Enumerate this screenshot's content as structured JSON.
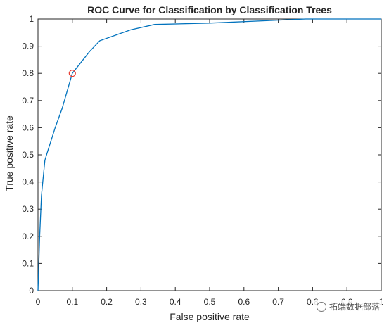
{
  "chart_data": {
    "type": "line",
    "title": "ROC Curve for Classification by Classification Trees",
    "xlabel": "False positive rate",
    "ylabel": "True positive rate",
    "xlim": [
      0,
      1
    ],
    "ylim": [
      0,
      1
    ],
    "xticks": [
      "0",
      "0.1",
      "0.2",
      "0.3",
      "0.4",
      "0.5",
      "0.6",
      "0.7",
      "0.8",
      "0.9",
      "1"
    ],
    "yticks": [
      "0",
      "0.1",
      "0.2",
      "0.3",
      "0.4",
      "0.5",
      "0.6",
      "0.7",
      "0.8",
      "0.9",
      "1"
    ],
    "grid": false,
    "series": [
      {
        "color": "#0072BD",
        "x": [
          0,
          0.005,
          0.01,
          0.02,
          0.03,
          0.05,
          0.07,
          0.1,
          0.15,
          0.18,
          0.27,
          0.34,
          0.5,
          0.78,
          1.0
        ],
        "y": [
          0,
          0.2,
          0.35,
          0.48,
          0.52,
          0.6,
          0.67,
          0.8,
          0.88,
          0.92,
          0.96,
          0.98,
          0.985,
          1.0,
          1.0
        ]
      }
    ],
    "marker": {
      "x": 0.1,
      "y": 0.8,
      "color": "#E8392E",
      "shape": "circle"
    }
  },
  "watermark": {
    "text": "拓端数据部落",
    "icon": "wechat-icon"
  }
}
